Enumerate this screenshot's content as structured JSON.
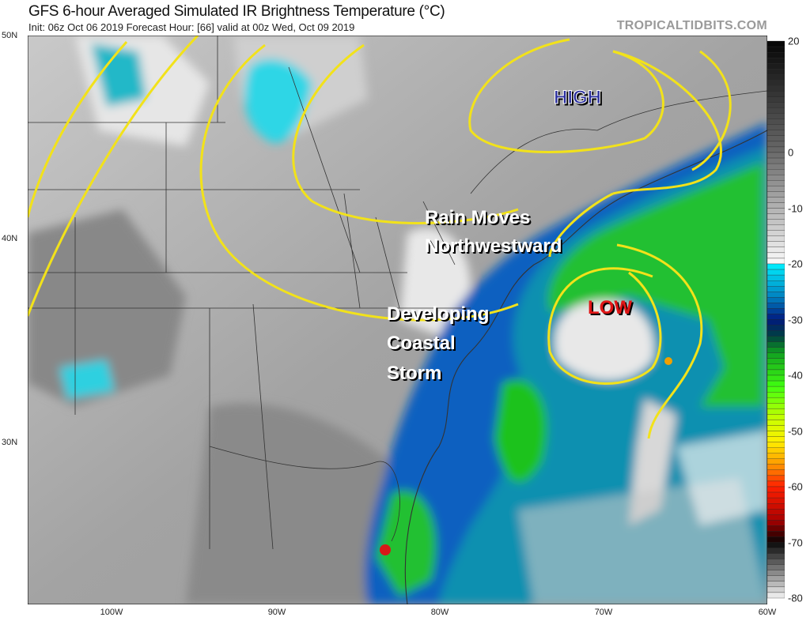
{
  "header": {
    "title": "GFS 6-hour Averaged Simulated IR Brightness Temperature (°C)",
    "subtitle": "Init: 06z Oct 06 2019   Forecast Hour: [66]   valid at 00z Wed, Oct 09 2019",
    "brand": "TROPICALTIDBITS.COM"
  },
  "axes": {
    "lat_labels": [
      "50N",
      "40N",
      "30N"
    ],
    "lon_labels": [
      "100W",
      "90W",
      "80W",
      "70W",
      "60W"
    ]
  },
  "colorbar": {
    "labels": [
      "20",
      "0",
      "-10",
      "-20",
      "-30",
      "-40",
      "-50",
      "-60",
      "-70",
      "-80"
    ],
    "range": [
      20,
      -80
    ],
    "unit": "°C"
  },
  "annotations": {
    "high": "HIGH",
    "low": "LOW",
    "rain_line1": "Rain Moves",
    "rain_line2": "Northwestward",
    "storm_line1": "Developing",
    "storm_line2": "Coastal",
    "storm_line3": "Storm",
    "high_color": "#2b2f9e",
    "low_color": "#e01818",
    "contour_color": "#f2e21a"
  }
}
